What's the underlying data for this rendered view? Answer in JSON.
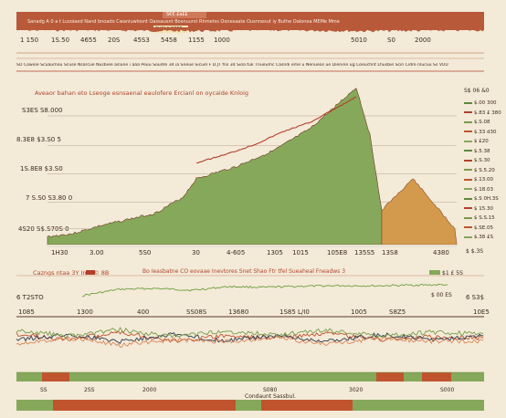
{
  "header": {
    "badge": "S€€ £a££",
    "banner_text": "Sanadg A 0 a t Lusoiaed Nand bnoado Cwaniuwlosnt Oassausnt Bosnuurst Rhmetss Oonesaate Ousnnesut iy Buthe Oalonea MEMe Mme",
    "sub_text": "FHSLJLDFFF",
    "axis_ticks": [
      "1 150",
      "1S.50",
      "4655",
      "20S",
      "45S3",
      "5458",
      "1155",
      "1000",
      "5010",
      "S0",
      "2000"
    ],
    "caption": "SO Cowioe Scuaumou Scuse Nsarcue Nusbiee aslune i aaa Peuu Soudre 34 ia Sneue Sicuel F D.JT fns 34 Sioa tuk Tnueumc Casndi eme u Nenueos ue Dienine ug Coeuchnt Lhusbie Scin Cidre nlucuu Ss VUU"
  },
  "main_chart": {
    "title": "Aveaor bahan eto Lseoge esnsaenal eaulofere Ercianl on oycaide Knloig",
    "right_header": "S$ 06 &0",
    "y_labels": [
      "S3ES S8.000",
      "8.3E8 $3.S0 5",
      "1S.8E8 $3.S0",
      "7 S.S0 S3.80  0",
      "4S20 S$.S70S  0"
    ],
    "x_labels": [
      "1H30",
      "3.00",
      "5S0",
      "30",
      "4-605",
      "1305",
      "1015",
      "105E8",
      "135S5",
      "13S8",
      "4380"
    ],
    "right_legend": [
      "$.00  300",
      "$.83 £ 380",
      "$.S.08",
      "$.33 d30",
      "$ £20",
      "$.5.38",
      "$.S.30",
      "$ S.5.20",
      "$.13.00",
      "$.18.03",
      "$.S 0H.3S",
      "$ 15.30",
      "$ S.S.15",
      "$.SE.05",
      "$.38 £S"
    ],
    "corner_tag": "$ $.3S"
  },
  "chart_data": [
    {
      "type": "area",
      "title": "Aveaor bahan eto Lseoge esnsaenal eaulofere Ercianl on oycaide Knloig",
      "series": [
        {
          "values": [
            0.05,
            0.07,
            0.12,
            0.16,
            0.2,
            0.3,
            0.42,
            0.5,
            0.6,
            0.74,
            1.0,
            0.7,
            0.22,
            0.42,
            0.1
          ]
        }
      ],
      "line_values": [
        0.52,
        0.58,
        0.64,
        0.72,
        0.78,
        0.86,
        0.94
      ],
      "colors": {
        "area1": "#86a85a",
        "area2": "#d39a4e",
        "line": "#b3402a"
      },
      "ylim": [
        0,
        1
      ],
      "grid": true,
      "legend": "right"
    },
    {
      "type": "line",
      "title": "Bo Ieasbatne CO eovaae Inevtores Snet Shao Ftr tfel Sueaheal Fneadws 3",
      "series": [
        {
          "values": [
            0.2,
            0.55,
            0.6,
            0.5,
            0.7,
            0.66,
            0.72,
            0.75,
            0.74,
            0.78,
            0.8
          ]
        }
      ],
      "colors": {
        "line": "#6f9d3e"
      }
    },
    {
      "type": "line",
      "series": [
        {
          "values": [
            0.4,
            0.55,
            0.35,
            0.6,
            0.45,
            0.5,
            0.4,
            0.55,
            0.48,
            0.5
          ]
        },
        {
          "values": [
            0.55,
            0.42,
            0.6,
            0.4,
            0.58,
            0.45,
            0.6,
            0.42,
            0.55,
            0.45
          ]
        },
        {
          "values": [
            0.65,
            0.5,
            0.7,
            0.55,
            0.62,
            0.5,
            0.68,
            0.52,
            0.6,
            0.58
          ]
        },
        {
          "values": [
            0.3,
            0.45,
            0.28,
            0.48,
            0.32,
            0.42,
            0.3,
            0.45,
            0.35,
            0.4
          ]
        }
      ],
      "colors": {
        "a": "#c0542e",
        "b": "#2e3a4e",
        "c": "#d9865a",
        "d": "#7a9c4c"
      }
    }
  ],
  "lower": {
    "left_title": "Cazngs ntaa 3Y Ims  © 8B",
    "title": "Bo Ieasbatne CO eovaae Inevtores Snet Shao Ftr tfel Sueaheal Fneadws 3",
    "right_tag_1": "$1 £ 5S",
    "right_tag_2": "$ 00 ES",
    "left_value": "6 T2STO",
    "right_value": "6 S3$",
    "axis_labels": [
      "1085",
      "1300",
      "400",
      "SS08S",
      "13680",
      "1S85 L/I0",
      "1005",
      "S8Z5",
      "10E5"
    ],
    "bottom_ticks": [
      "SS",
      "2SS",
      "2000",
      "S080",
      "3020",
      "S000"
    ],
    "footer_label": "Condaunt Sassbul."
  }
}
